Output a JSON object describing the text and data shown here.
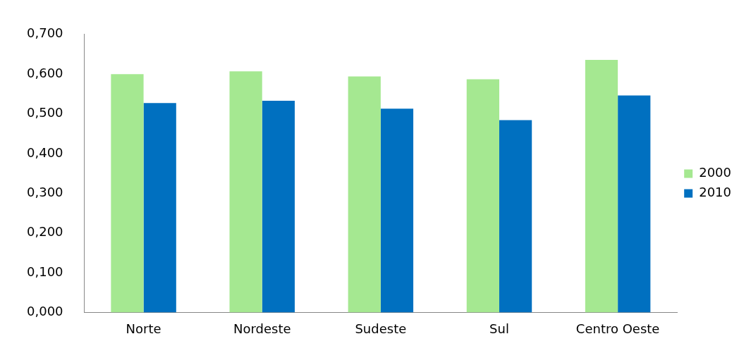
{
  "chart_data": {
    "type": "bar",
    "categories": [
      "Norte",
      "Nordeste",
      "Sudeste",
      "Sul",
      "Centro Oeste"
    ],
    "series": [
      {
        "name": "2000",
        "color": "#a5e891",
        "values": [
          0.6,
          0.607,
          0.594,
          0.587,
          0.636
        ]
      },
      {
        "name": "2010",
        "color": "#0070c0",
        "values": [
          0.527,
          0.533,
          0.513,
          0.484,
          0.546
        ]
      }
    ],
    "ylim": [
      0,
      0.7
    ],
    "yticks": [
      {
        "value": 0,
        "label": "0,000"
      },
      {
        "value": 0.1,
        "label": "0,100"
      },
      {
        "value": 0.2,
        "label": "0,200"
      },
      {
        "value": 0.3,
        "label": "0,300"
      },
      {
        "value": 0.4,
        "label": "0,400"
      },
      {
        "value": 0.5,
        "label": "0,500"
      },
      {
        "value": 0.6,
        "label": "0,600"
      },
      {
        "value": 0.7,
        "label": "0,700"
      }
    ],
    "grid": false,
    "legend": "right"
  }
}
